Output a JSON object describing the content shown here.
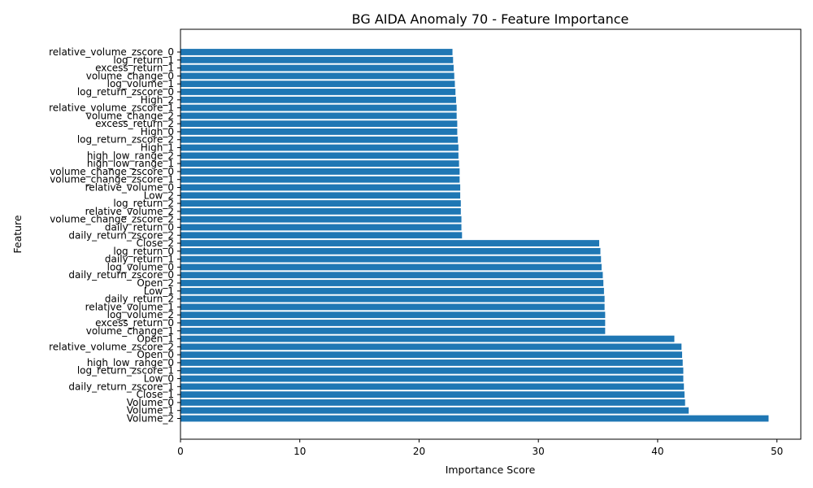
{
  "chart_data": {
    "type": "bar",
    "orientation": "horizontal",
    "title": "BG AIDA Anomaly 70 - Feature Importance",
    "xlabel": "Importance Score",
    "ylabel": "Feature",
    "xlim": [
      0,
      52
    ],
    "xticks": [
      0,
      10,
      20,
      30,
      40,
      50
    ],
    "grid": false,
    "bar_color": "#1f77b4",
    "categories": [
      "Volume_2",
      "Volume_1",
      "Volume_0",
      "Close_1",
      "daily_return_zscore_1",
      "Low_0",
      "log_return_zscore_1",
      "high_low_range_0",
      "Open_0",
      "relative_volume_zscore_2",
      "Open_1",
      "volume_change_1",
      "excess_return_0",
      "log_volume_2",
      "relative_volume_1",
      "daily_return_2",
      "Low_1",
      "Open_2",
      "daily_return_zscore_0",
      "log_volume_0",
      "daily_return_1",
      "log_return_0",
      "Close_2",
      "daily_return_zscore_2",
      "daily_return_0",
      "volume_change_zscore_2",
      "relative_volume_2",
      "log_return_2",
      "Low_2",
      "relative_volume_0",
      "volume_change_zscore_1",
      "volume_change_zscore_0",
      "high_low_range_1",
      "high_low_range_2",
      "High_1",
      "log_return_zscore_2",
      "High_0",
      "excess_return_2",
      "volume_change_2",
      "relative_volume_zscore_1",
      "High_2",
      "log_return_zscore_0",
      "log_volume_1",
      "volume_change_0",
      "excess_return_1",
      "log_return_1",
      "relative_volume_zscore_0"
    ],
    "values": [
      49.3,
      42.6,
      42.3,
      42.25,
      42.2,
      42.15,
      42.15,
      42.1,
      42.05,
      42.0,
      41.4,
      35.6,
      35.6,
      35.6,
      35.55,
      35.55,
      35.5,
      35.45,
      35.4,
      35.3,
      35.25,
      35.2,
      35.1,
      23.6,
      23.55,
      23.55,
      23.5,
      23.5,
      23.45,
      23.45,
      23.4,
      23.4,
      23.35,
      23.3,
      23.3,
      23.25,
      23.2,
      23.2,
      23.15,
      23.15,
      23.1,
      23.05,
      23.0,
      22.95,
      22.9,
      22.85,
      22.8
    ]
  }
}
